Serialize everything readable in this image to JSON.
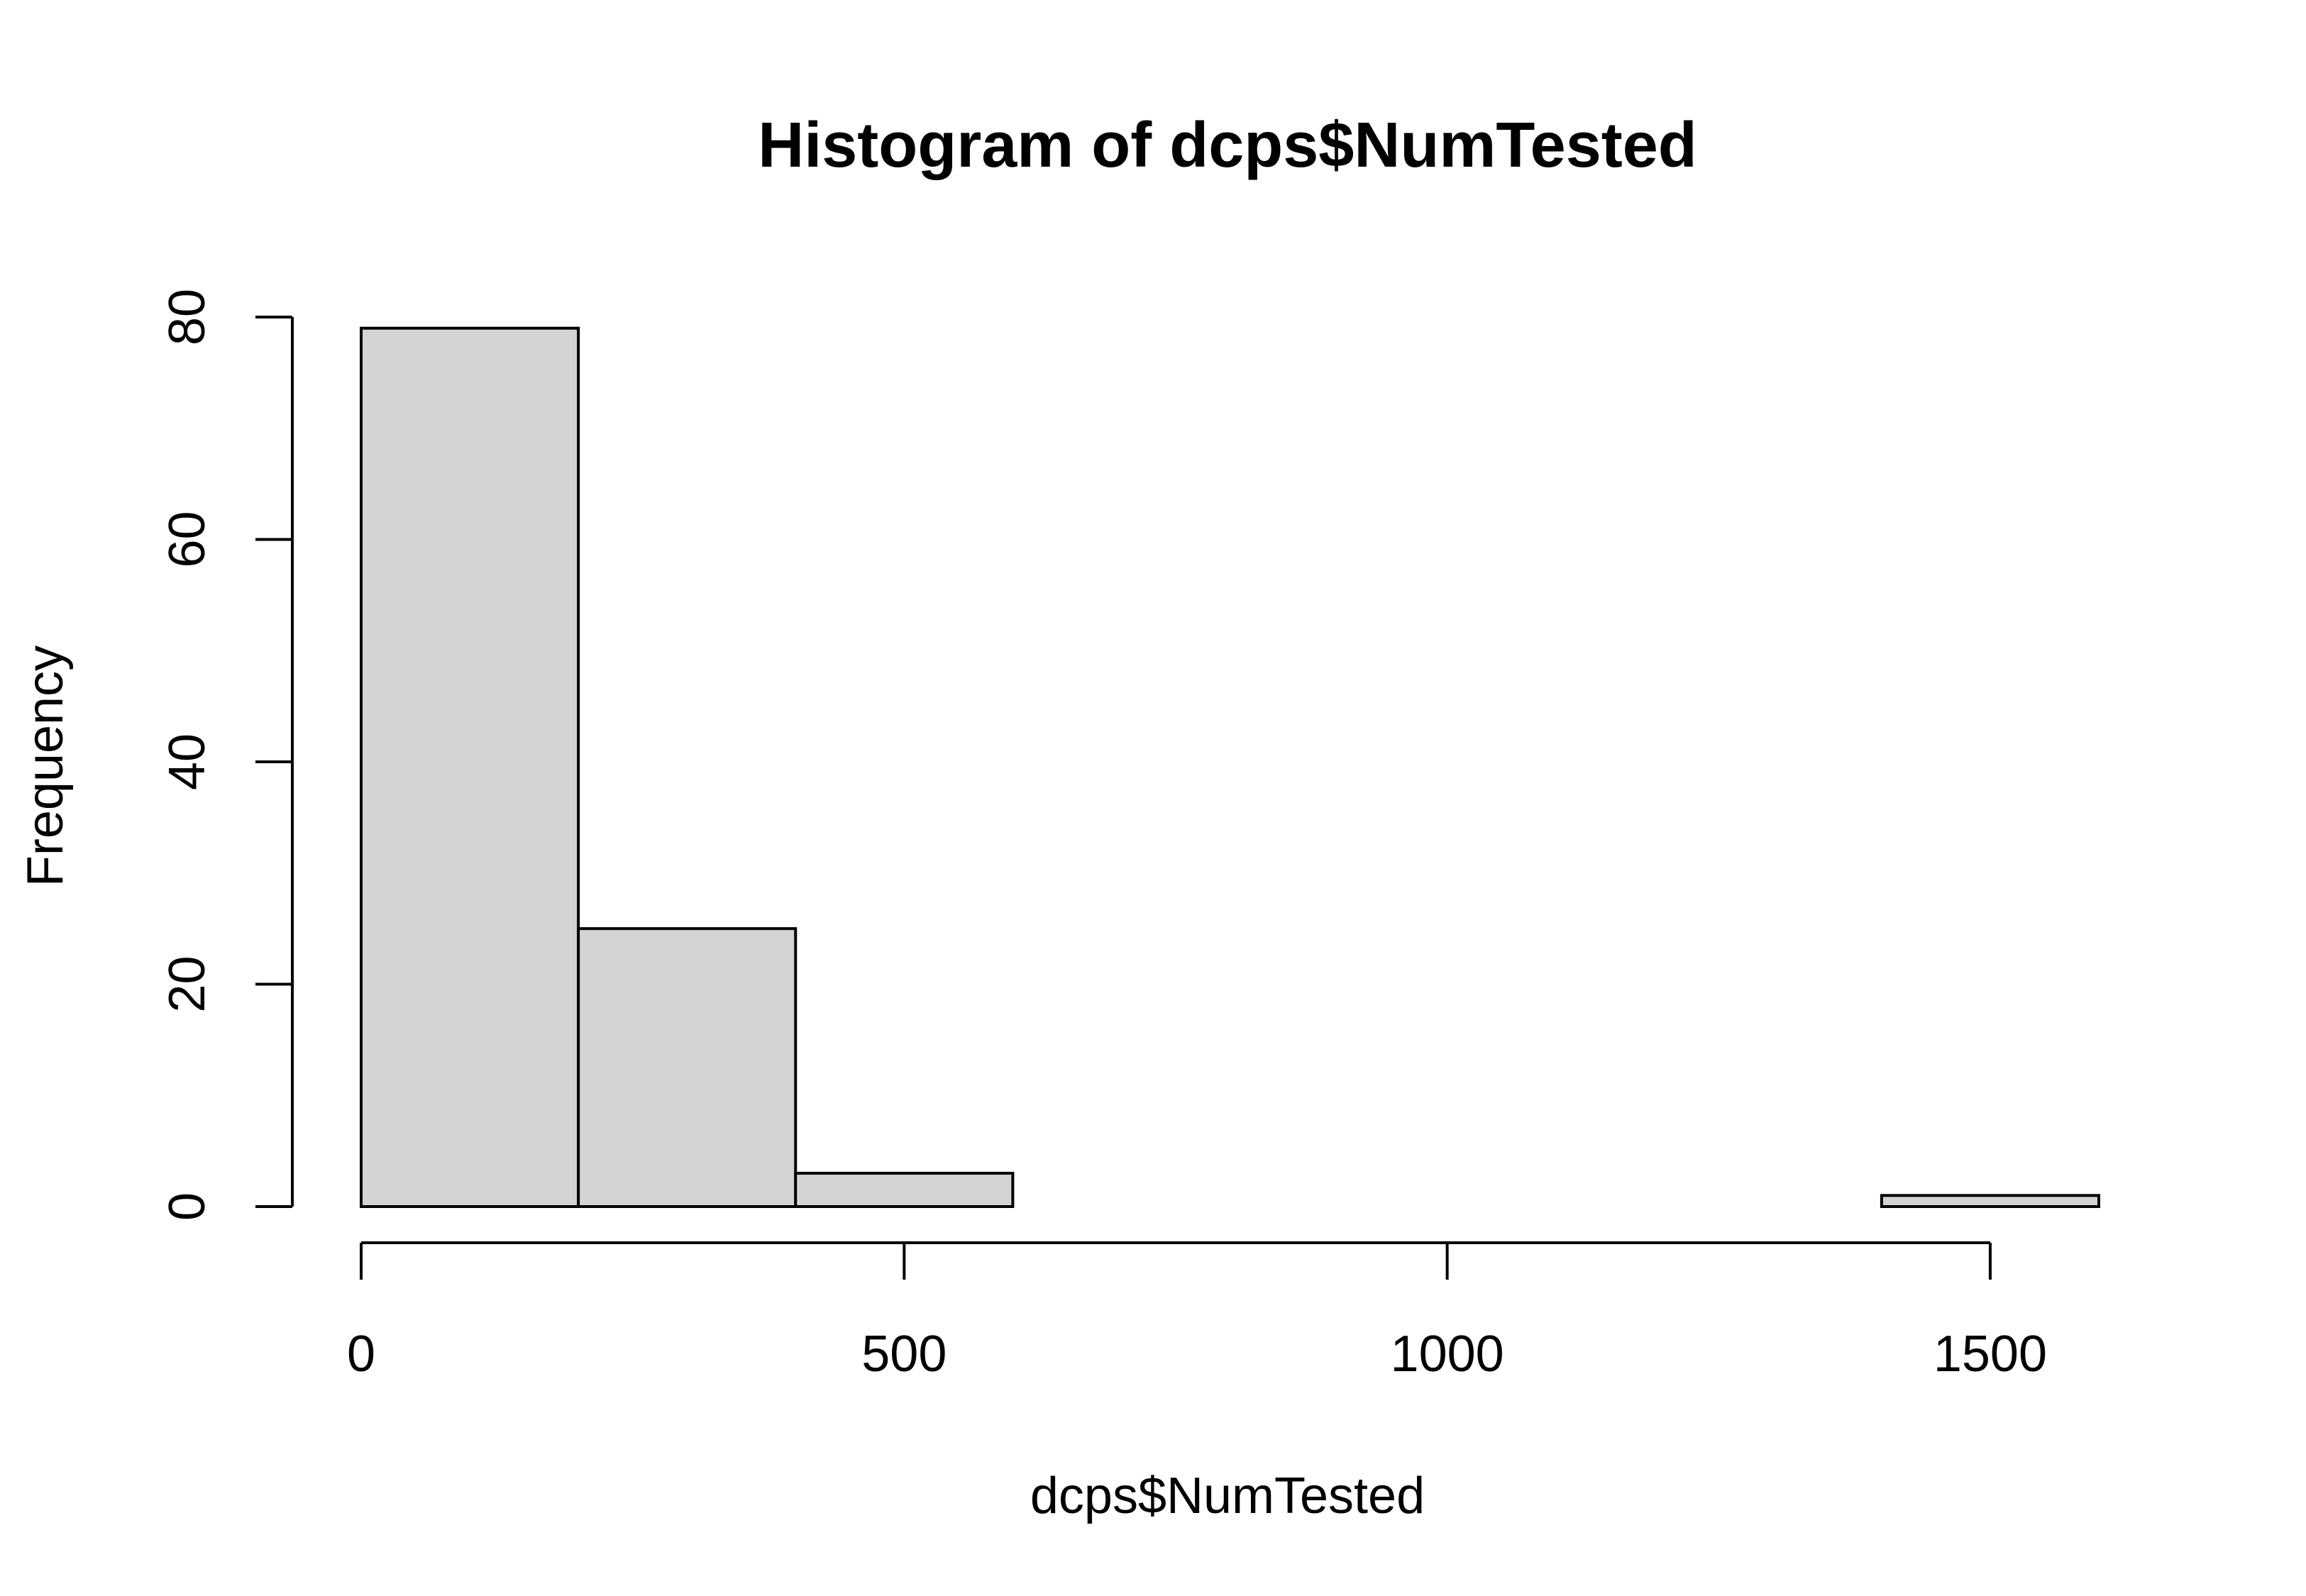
{
  "chart_data": {
    "type": "bar",
    "title": "Histogram of dcps$NumTested",
    "xlabel": "dcps$NumTested",
    "ylabel": "Frequency",
    "bins": [
      {
        "x0": 0,
        "x1": 200,
        "count": 79
      },
      {
        "x0": 200,
        "x1": 400,
        "count": 25
      },
      {
        "x0": 400,
        "x1": 600,
        "count": 3
      },
      {
        "x0": 600,
        "x1": 800,
        "count": 0
      },
      {
        "x0": 800,
        "x1": 1000,
        "count": 0
      },
      {
        "x0": 1000,
        "x1": 1200,
        "count": 0
      },
      {
        "x0": 1200,
        "x1": 1400,
        "count": 0
      },
      {
        "x0": 1400,
        "x1": 1600,
        "count": 1
      }
    ],
    "x_ticks": [
      0,
      500,
      1000,
      1500
    ],
    "y_ticks": [
      0,
      20,
      40,
      60,
      80
    ],
    "xlim": [
      0,
      1600
    ],
    "ylim": [
      0,
      80
    ],
    "bar_color": "#d3d3d3",
    "grid": false
  }
}
